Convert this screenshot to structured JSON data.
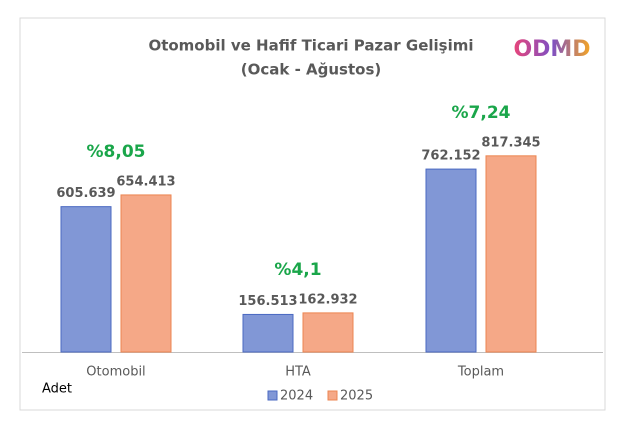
{
  "chart_data": {
    "type": "bar",
    "title": [
      "Otomobil ve Hafif Ticari Pazar Gelişimi",
      "(Ocak - Ağustos)"
    ],
    "logo": "ODMD",
    "y_label": "Adet",
    "categories": [
      "Otomobil",
      "HTA",
      "Toplam"
    ],
    "series": [
      {
        "name": "2024",
        "color": "#8197d6",
        "edge": "#4a69c2",
        "values": [
          605639,
          156513,
          762152
        ],
        "value_labels": [
          "605.639",
          "156.513",
          "762.152"
        ]
      },
      {
        "name": "2025",
        "color": "#f5a887",
        "edge": "#ec8550",
        "values": [
          654413,
          162932,
          817345
        ],
        "value_labels": [
          "654.413",
          "162.932",
          "817.345"
        ]
      }
    ],
    "annotations": [
      "%8,05",
      "%4,1",
      "%7,24"
    ],
    "annotation_color": "#1aa64a",
    "ylim": [
      0,
      1000000
    ]
  }
}
